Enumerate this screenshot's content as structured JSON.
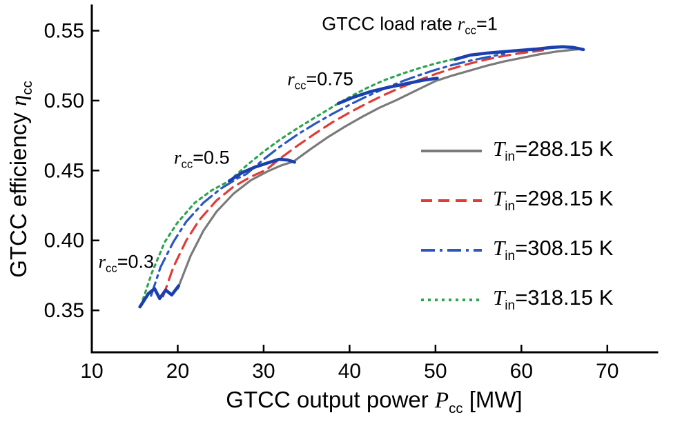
{
  "chart_data": {
    "type": "line",
    "title": "",
    "background": "#ffffff",
    "axis_color": "#000000",
    "grid": false,
    "legend_position": "center-right",
    "xlabel": {
      "prefix": "GTCC output power ",
      "var": "P",
      "sub": "cc",
      "suffix": " [MW]"
    },
    "ylabel": {
      "prefix": "GTCC efficiency ",
      "var": "η",
      "sub": "cc",
      "suffix": ""
    },
    "xlim": [
      10,
      75.8
    ],
    "ylim": [
      0.32,
      0.568
    ],
    "xticks": [
      10,
      20,
      30,
      40,
      50,
      60,
      70
    ],
    "xtick_labels": [
      "10",
      "20",
      "30",
      "40",
      "50",
      "60",
      "70"
    ],
    "yticks": [
      0.35,
      0.4,
      0.45,
      0.5,
      0.55
    ],
    "ytick_labels": [
      "0.35",
      "0.40",
      "0.45",
      "0.50",
      "0.55"
    ],
    "series": [
      {
        "id": "tin-288",
        "name": "Tin=288.15 K",
        "temperature_K": 288.15,
        "var": "T",
        "sub": "in",
        "value": "=288.15 K",
        "color": "#7a7a7a",
        "dash": "",
        "width": 3.2,
        "points": [
          [
            20,
            0.3655
          ],
          [
            21.5,
            0.389
          ],
          [
            23,
            0.407
          ],
          [
            24.5,
            0.4205
          ],
          [
            26.5,
            0.4335
          ],
          [
            28.5,
            0.443
          ],
          [
            30.5,
            0.4495
          ],
          [
            32,
            0.4535
          ],
          [
            33.5,
            0.4565
          ],
          [
            35.5,
            0.4655
          ],
          [
            37.5,
            0.474
          ],
          [
            39.5,
            0.4815
          ],
          [
            41.5,
            0.4885
          ],
          [
            43.5,
            0.495
          ],
          [
            45.5,
            0.5005
          ],
          [
            47.5,
            0.5065
          ],
          [
            50,
            0.514
          ],
          [
            52,
            0.518
          ],
          [
            54,
            0.5215
          ],
          [
            56,
            0.525
          ],
          [
            58,
            0.528
          ],
          [
            60,
            0.5305
          ],
          [
            62,
            0.533
          ],
          [
            64,
            0.535
          ],
          [
            65.5,
            0.536
          ],
          [
            67,
            0.537
          ]
        ]
      },
      {
        "id": "tin-298",
        "name": "Tin=298.15 K",
        "temperature_K": 298.15,
        "var": "T",
        "sub": "in",
        "value": "=298.15 K",
        "color": "#e23b35",
        "dash": "16 9",
        "width": 3.2,
        "points": [
          [
            18.3,
            0.36
          ],
          [
            19.5,
            0.381
          ],
          [
            21,
            0.4
          ],
          [
            22.5,
            0.4145
          ],
          [
            24.5,
            0.4285
          ],
          [
            26.5,
            0.4385
          ],
          [
            28.5,
            0.4455
          ],
          [
            30.3,
            0.4505
          ],
          [
            32,
            0.459
          ],
          [
            34,
            0.468
          ],
          [
            36,
            0.4765
          ],
          [
            38,
            0.4845
          ],
          [
            40,
            0.4915
          ],
          [
            42,
            0.498
          ],
          [
            44,
            0.504
          ],
          [
            46,
            0.5095
          ],
          [
            48,
            0.5145
          ],
          [
            50,
            0.519
          ],
          [
            52,
            0.523
          ],
          [
            54,
            0.5265
          ],
          [
            56,
            0.5295
          ],
          [
            58,
            0.532
          ],
          [
            60,
            0.534
          ],
          [
            62.5,
            0.536
          ]
        ]
      },
      {
        "id": "tin-308",
        "name": "Tin=308.15 K",
        "temperature_K": 308.15,
        "var": "T",
        "sub": "in",
        "value": "=308.15 K",
        "color": "#2a57c2",
        "dash": "20 7 4 7",
        "width": 3.2,
        "points": [
          [
            16.9,
            0.3605
          ],
          [
            18,
            0.381
          ],
          [
            19.5,
            0.399
          ],
          [
            21,
            0.4135
          ],
          [
            23,
            0.427
          ],
          [
            25,
            0.437
          ],
          [
            27,
            0.4445
          ],
          [
            28,
            0.4475
          ],
          [
            30,
            0.458
          ],
          [
            32,
            0.4675
          ],
          [
            34,
            0.476
          ],
          [
            36,
            0.4835
          ],
          [
            38,
            0.4905
          ],
          [
            40,
            0.497
          ],
          [
            42,
            0.503
          ],
          [
            44,
            0.5085
          ],
          [
            46,
            0.5135
          ],
          [
            48,
            0.518
          ],
          [
            50,
            0.522
          ],
          [
            52,
            0.5255
          ],
          [
            54,
            0.5285
          ],
          [
            56,
            0.531
          ],
          [
            58,
            0.5335
          ]
        ]
      },
      {
        "id": "tin-318",
        "name": "Tin=318.15 K",
        "temperature_K": 318.15,
        "var": "T",
        "sub": "in",
        "value": "=318.15 K",
        "color": "#2ea450",
        "dash": "4 6",
        "width": 3.2,
        "points": [
          [
            15.7,
            0.353
          ],
          [
            17,
            0.377
          ],
          [
            18.5,
            0.399
          ],
          [
            20,
            0.413
          ],
          [
            22,
            0.427
          ],
          [
            24,
            0.436
          ],
          [
            26,
            0.4425
          ],
          [
            28,
            0.4535
          ],
          [
            30,
            0.4635
          ],
          [
            32,
            0.4725
          ],
          [
            34,
            0.4805
          ],
          [
            36,
            0.488
          ],
          [
            38.7,
            0.498
          ],
          [
            40,
            0.5025
          ],
          [
            42,
            0.509
          ],
          [
            44,
            0.5145
          ],
          [
            46,
            0.519
          ],
          [
            48,
            0.523
          ],
          [
            50,
            0.5265
          ],
          [
            52,
            0.5295
          ],
          [
            54,
            0.532
          ]
        ]
      }
    ],
    "load_rate_color": "#1a3fae",
    "load_rate_width": 4.6,
    "load_rate_segments": [
      {
        "id": "r-0-3",
        "load_rate": 0.3,
        "points": [
          [
            15.6,
            0.3525
          ],
          [
            16.6,
            0.362
          ],
          [
            17.3,
            0.3655
          ],
          [
            17.9,
            0.3585
          ],
          [
            18.6,
            0.3645
          ],
          [
            19.3,
            0.361
          ],
          [
            20.1,
            0.3675
          ]
        ]
      },
      {
        "id": "r-0-5",
        "load_rate": 0.5,
        "points": [
          [
            26,
            0.4425
          ],
          [
            27.5,
            0.4485
          ],
          [
            29,
            0.4525
          ],
          [
            30.5,
            0.4555
          ],
          [
            31.8,
            0.458
          ],
          [
            32.8,
            0.4575
          ],
          [
            33.6,
            0.456
          ]
        ]
      },
      {
        "id": "r-0-75",
        "load_rate": 0.75,
        "points": [
          [
            38.7,
            0.498
          ],
          [
            40.5,
            0.5025
          ],
          [
            42.5,
            0.5065
          ],
          [
            44.5,
            0.5095
          ],
          [
            46.5,
            0.512
          ],
          [
            48.5,
            0.5145
          ],
          [
            50.2,
            0.516
          ]
        ]
      },
      {
        "id": "r-1",
        "load_rate": 1,
        "points": [
          [
            52.3,
            0.5295
          ],
          [
            54,
            0.5325
          ],
          [
            56,
            0.534
          ],
          [
            58,
            0.535
          ],
          [
            60,
            0.536
          ],
          [
            62,
            0.537
          ],
          [
            63.5,
            0.538
          ],
          [
            64.8,
            0.5385
          ],
          [
            66,
            0.538
          ],
          [
            67.2,
            0.5365
          ]
        ]
      }
    ],
    "annotations": [
      {
        "id": "load-rate-1",
        "prefix": "GTCC load rate ",
        "var": "r",
        "sub": "cc",
        "suffix": "=1",
        "x": 47.0,
        "y": 0.5535
      },
      {
        "id": "r-0-75",
        "prefix": "",
        "var": "r",
        "sub": "cc",
        "suffix": "=0.75",
        "x": 36.6,
        "y": 0.5145
      },
      {
        "id": "r-0-5",
        "prefix": "",
        "var": "r",
        "sub": "cc",
        "suffix": "=0.5",
        "x": 22.8,
        "y": 0.458
      },
      {
        "id": "r-0-3",
        "prefix": "",
        "var": "r",
        "sub": "cc",
        "suffix": "=0.3",
        "x": 14.0,
        "y": 0.3835
      }
    ]
  }
}
